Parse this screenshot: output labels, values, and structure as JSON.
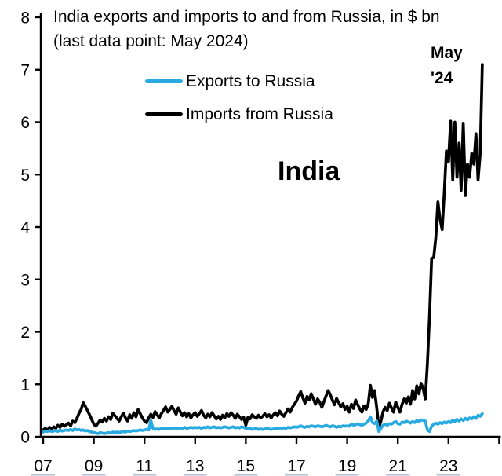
{
  "title": {
    "line1": "India exports and imports to and from Russia, in $ bn",
    "line2": "(last data point: May 2024)"
  },
  "annotations": {
    "country": "India",
    "last_point_line1": "May",
    "last_point_line2": "'24"
  },
  "legend": [
    {
      "label": "Exports to Russia",
      "color": "#28AAE1"
    },
    {
      "label": "Imports from Russia",
      "color": "#000000"
    }
  ],
  "chart_data": {
    "type": "line",
    "title": "India exports and imports to and from Russia, in $ bn",
    "subtitle": "(last data point: May 2024)",
    "frequency": "monthly",
    "x_start": "2007-01",
    "x_end": "2024-05",
    "xlabel": "",
    "ylabel": "$ bn",
    "ylim": [
      0,
      8
    ],
    "y_ticks": [
      0,
      1,
      2,
      3,
      4,
      5,
      6,
      7,
      8
    ],
    "x_tick_labels": [
      "07",
      "09",
      "11",
      "13",
      "15",
      "17",
      "19",
      "21",
      "23"
    ],
    "grid": false,
    "legend_position": "top-left-inside",
    "axis_color": "#000000",
    "series": [
      {
        "name": "Imports from Russia",
        "color": "#000000",
        "values": [
          0.13,
          0.16,
          0.12,
          0.18,
          0.15,
          0.19,
          0.16,
          0.22,
          0.18,
          0.24,
          0.2,
          0.23,
          0.26,
          0.21,
          0.3,
          0.27,
          0.35,
          0.45,
          0.52,
          0.65,
          0.58,
          0.5,
          0.42,
          0.33,
          0.24,
          0.2,
          0.26,
          0.32,
          0.28,
          0.35,
          0.3,
          0.38,
          0.33,
          0.45,
          0.4,
          0.35,
          0.3,
          0.38,
          0.45,
          0.36,
          0.3,
          0.42,
          0.35,
          0.46,
          0.38,
          0.52,
          0.44,
          0.36,
          0.3,
          0.27,
          0.36,
          0.43,
          0.37,
          0.48,
          0.42,
          0.36,
          0.44,
          0.5,
          0.57,
          0.47,
          0.52,
          0.58,
          0.5,
          0.43,
          0.55,
          0.47,
          0.4,
          0.46,
          0.38,
          0.44,
          0.36,
          0.42,
          0.46,
          0.39,
          0.44,
          0.5,
          0.41,
          0.36,
          0.43,
          0.38,
          0.46,
          0.4,
          0.34,
          0.39,
          0.33,
          0.41,
          0.36,
          0.44,
          0.39,
          0.46,
          0.41,
          0.35,
          0.43,
          0.38,
          0.33,
          0.37,
          0.22,
          0.37,
          0.34,
          0.42,
          0.38,
          0.35,
          0.41,
          0.36,
          0.39,
          0.44,
          0.38,
          0.42,
          0.36,
          0.42,
          0.46,
          0.4,
          0.49,
          0.43,
          0.39,
          0.46,
          0.53,
          0.47,
          0.56,
          0.62,
          0.68,
          0.78,
          0.86,
          0.74,
          0.64,
          0.77,
          0.7,
          0.82,
          0.72,
          0.62,
          0.72,
          0.66,
          0.56,
          0.67,
          0.78,
          0.88,
          0.8,
          0.7,
          0.61,
          0.73,
          0.65,
          0.57,
          0.63,
          0.52,
          0.58,
          0.47,
          0.62,
          0.54,
          0.7,
          0.61,
          0.53,
          0.47,
          0.59,
          0.52,
          0.63,
          0.98,
          0.75,
          0.88,
          0.55,
          0.18,
          0.3,
          0.48,
          0.56,
          0.5,
          0.64,
          0.55,
          0.47,
          0.66,
          0.56,
          0.47,
          0.62,
          0.72,
          0.64,
          0.76,
          0.62,
          0.88,
          0.72,
          0.97,
          0.82,
          1.02,
          0.92,
          0.72,
          1.4,
          2.3,
          3.4,
          3.42,
          3.8,
          4.48,
          4.15,
          3.95,
          4.65,
          5.45,
          5.25,
          6.02,
          4.9,
          6.0,
          4.95,
          5.6,
          4.7,
          5.98,
          4.6,
          5.2,
          4.95,
          5.4,
          5.2,
          5.78,
          4.9,
          5.4,
          7.1
        ]
      },
      {
        "name": "Exports to Russia",
        "color": "#28AAE1",
        "values": [
          0.09,
          0.11,
          0.1,
          0.12,
          0.1,
          0.11,
          0.12,
          0.1,
          0.13,
          0.11,
          0.12,
          0.13,
          0.12,
          0.14,
          0.12,
          0.15,
          0.13,
          0.14,
          0.12,
          0.13,
          0.11,
          0.12,
          0.1,
          0.09,
          0.08,
          0.07,
          0.06,
          0.08,
          0.07,
          0.06,
          0.07,
          0.08,
          0.07,
          0.09,
          0.08,
          0.09,
          0.08,
          0.09,
          0.1,
          0.09,
          0.11,
          0.1,
          0.11,
          0.12,
          0.11,
          0.12,
          0.13,
          0.12,
          0.13,
          0.14,
          0.13,
          0.31,
          0.16,
          0.14,
          0.15,
          0.14,
          0.16,
          0.15,
          0.16,
          0.15,
          0.16,
          0.15,
          0.17,
          0.16,
          0.15,
          0.17,
          0.16,
          0.18,
          0.16,
          0.17,
          0.18,
          0.17,
          0.18,
          0.17,
          0.18,
          0.16,
          0.18,
          0.17,
          0.19,
          0.17,
          0.18,
          0.19,
          0.17,
          0.18,
          0.17,
          0.18,
          0.19,
          0.18,
          0.17,
          0.18,
          0.19,
          0.17,
          0.18,
          0.17,
          0.19,
          0.18,
          0.16,
          0.15,
          0.16,
          0.14,
          0.15,
          0.16,
          0.14,
          0.15,
          0.14,
          0.15,
          0.16,
          0.15,
          0.14,
          0.15,
          0.16,
          0.15,
          0.17,
          0.16,
          0.17,
          0.16,
          0.18,
          0.17,
          0.18,
          0.19,
          0.18,
          0.19,
          0.21,
          0.19,
          0.18,
          0.2,
          0.19,
          0.21,
          0.2,
          0.19,
          0.21,
          0.2,
          0.19,
          0.2,
          0.22,
          0.2,
          0.19,
          0.21,
          0.2,
          0.18,
          0.2,
          0.19,
          0.21,
          0.2,
          0.21,
          0.2,
          0.24,
          0.22,
          0.23,
          0.25,
          0.23,
          0.22,
          0.24,
          0.26,
          0.3,
          0.38,
          0.27,
          0.25,
          0.3,
          0.1,
          0.16,
          0.22,
          0.24,
          0.22,
          0.25,
          0.24,
          0.27,
          0.29,
          0.25,
          0.24,
          0.28,
          0.27,
          0.3,
          0.28,
          0.26,
          0.29,
          0.27,
          0.31,
          0.29,
          0.32,
          0.31,
          0.3,
          0.13,
          0.1,
          0.2,
          0.24,
          0.26,
          0.24,
          0.27,
          0.25,
          0.28,
          0.26,
          0.29,
          0.27,
          0.32,
          0.29,
          0.33,
          0.3,
          0.34,
          0.31,
          0.35,
          0.32,
          0.36,
          0.34,
          0.38,
          0.35,
          0.41,
          0.39,
          0.44
        ]
      }
    ]
  }
}
